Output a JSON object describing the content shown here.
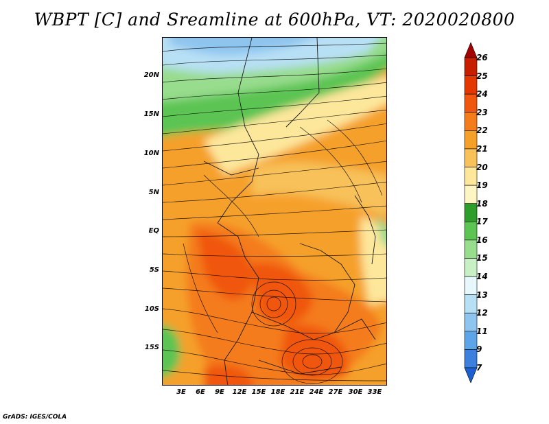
{
  "title": "WBPT [C] and Sreamline at 600hPa, VT: 2020020800",
  "footer": "GrADS: IGES/COLA",
  "map": {
    "projection": "lat-lon",
    "lon_range": [
      0,
      35
    ],
    "lat_range": [
      -20,
      24
    ],
    "variables": [
      "wet-bulb potential temperature (shaded)",
      "streamlines"
    ],
    "lat_ticks": [
      "20N",
      "15N",
      "10N",
      "5N",
      "EQ",
      "5S",
      "10S",
      "15S"
    ],
    "lon_ticks": [
      "3E",
      "6E",
      "9E",
      "12E",
      "15E",
      "18E",
      "21E",
      "24E",
      "27E",
      "30E",
      "33E"
    ]
  },
  "colorbar": {
    "labels": [
      "26",
      "25",
      "24",
      "23",
      "22",
      "21",
      "20",
      "19",
      "18",
      "17",
      "16",
      "15",
      "14",
      "13",
      "12",
      "11",
      "9",
      "7"
    ],
    "colors": [
      "#a50000",
      "#c81e00",
      "#e33600",
      "#f0560e",
      "#f47c1a",
      "#f5a029",
      "#f8c15a",
      "#fde79b",
      "#fdf6c2",
      "#2e9e2a",
      "#5cc452",
      "#98dc8e",
      "#c8f0c4",
      "#e6f8fb",
      "#b8e0f5",
      "#8ec5ef",
      "#5da4e8",
      "#3c7fdc",
      "#1c5fd0"
    ]
  }
}
